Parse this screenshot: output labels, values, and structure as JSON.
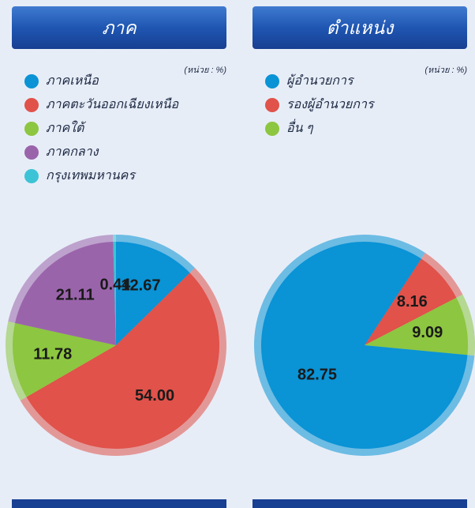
{
  "chart_data": [
    {
      "type": "pie",
      "title": "ภาค",
      "note": "(หน่วย : %)",
      "categories": [
        "ภาคเหนือ",
        "ภาคตะวันออกเฉียงเหนือ",
        "ภาคใต้",
        "ภาคกลาง",
        "กรุงเทพมหานคร"
      ],
      "values": [
        12.67,
        54,
        11.78,
        21.11,
        0.44
      ],
      "value_labels": [
        "12.67",
        "54.00",
        "11.78",
        "21.11",
        "0.44"
      ],
      "colors": [
        "#0a93d5",
        "#e0524a",
        "#8dc640",
        "#9a64ab",
        "#3dc3d6"
      ]
    },
    {
      "type": "pie",
      "title": "ตำแหน่ง",
      "note": "(หน่วย : %)",
      "categories": [
        "ผู้อำนวยการ",
        "รองผู้อำนวยการ",
        "อื่น ๆ"
      ],
      "values": [
        82.75,
        8.16,
        9.09
      ],
      "value_labels": [
        "82.75",
        "8.16",
        "9.09"
      ],
      "colors": [
        "#0a93d5",
        "#e0524a",
        "#8dc640"
      ]
    }
  ]
}
